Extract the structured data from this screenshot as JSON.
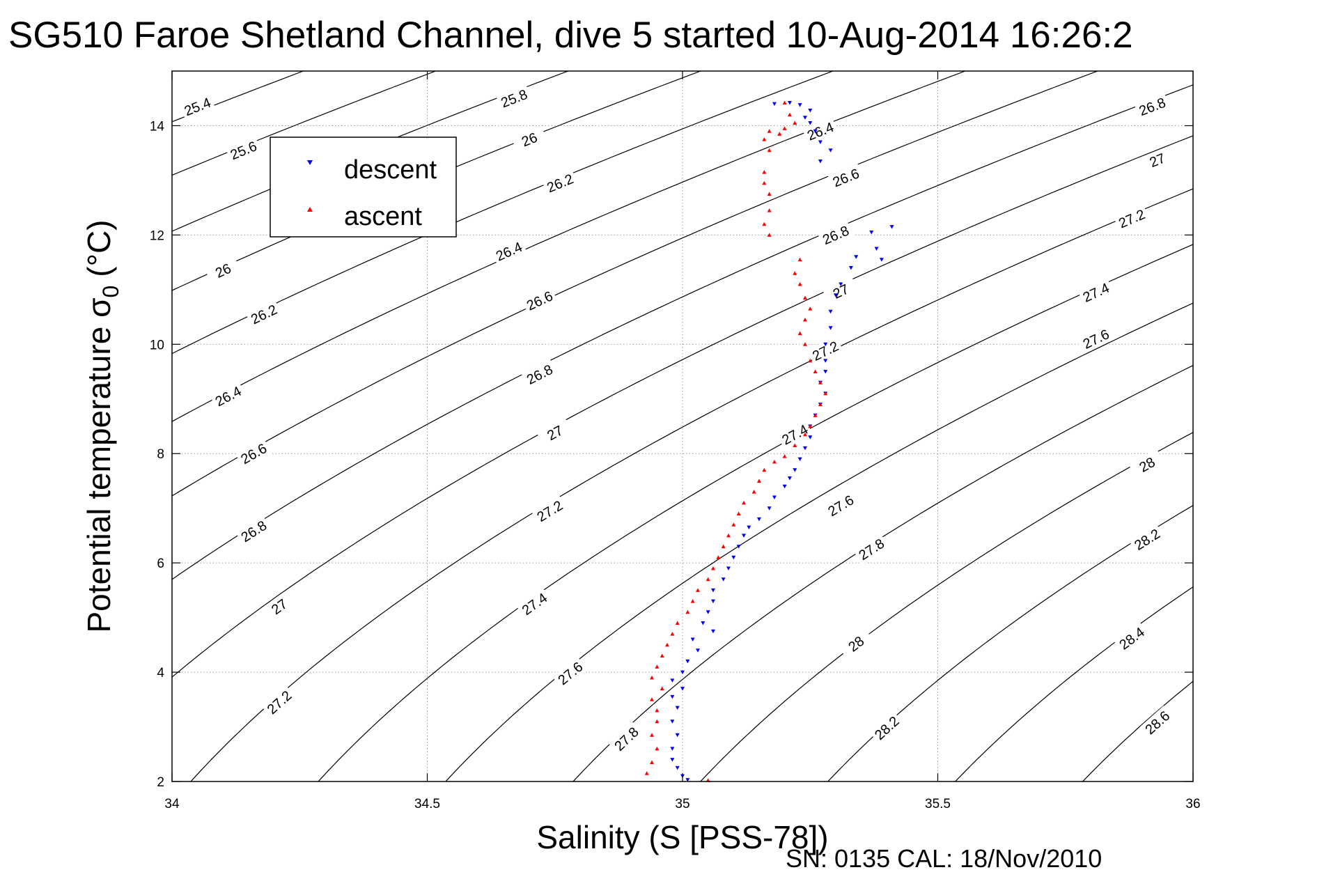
{
  "chart_data": {
    "type": "scatter",
    "title": "SG510 Faroe Shetland Channel, dive 5 started 10-Aug-2014 16:26:2",
    "xlabel": "Salinity (S [PSS-78])",
    "ylabel_main": "Potential temperature σ",
    "ylabel_sub": "0",
    "ylabel_unit": "(°C)",
    "footer": "SN: 0135  CAL: 18/Nov/2010",
    "xlim": [
      34,
      36
    ],
    "ylim": [
      2,
      15
    ],
    "x_ticks": [
      34,
      34.5,
      35,
      35.5,
      36
    ],
    "x_tick_labels": [
      "34",
      "34.5",
      "35",
      "35.5",
      "36"
    ],
    "y_ticks": [
      2,
      4,
      6,
      8,
      10,
      12,
      14
    ],
    "y_tick_labels": [
      "2",
      "4",
      "6",
      "8",
      "10",
      "12",
      "14"
    ],
    "grid": true,
    "legend_position": "top-left",
    "legend": [
      {
        "label": "descent",
        "color": "#0000ff",
        "marker": "triangle-down"
      },
      {
        "label": "ascent",
        "color": "#ff0000",
        "marker": "triangle-up"
      }
    ],
    "contour_levels": [
      "25.4",
      "25.6",
      "25.8",
      "26",
      "26.2",
      "26.4",
      "26.6",
      "26.8",
      "27",
      "27.2",
      "27.4",
      "27.6",
      "27.8",
      "28",
      "28.2",
      "28.4",
      "28.6"
    ],
    "contour_labels": [
      {
        "text": "25.4",
        "s": 34.05,
        "t": 14.35
      },
      {
        "text": "25.8",
        "s": 34.67,
        "t": 14.5
      },
      {
        "text": "25.6",
        "s": 34.14,
        "t": 13.55
      },
      {
        "text": "26",
        "s": 34.7,
        "t": 13.75
      },
      {
        "text": "26.2",
        "s": 34.76,
        "t": 12.95
      },
      {
        "text": "26.4",
        "s": 35.27,
        "t": 13.9
      },
      {
        "text": "26.6",
        "s": 35.32,
        "t": 13.05
      },
      {
        "text": "26.8",
        "s": 35.3,
        "t": 12.0
      },
      {
        "text": "27",
        "s": 35.31,
        "t": 10.97
      },
      {
        "text": "27.2",
        "s": 35.28,
        "t": 9.88
      },
      {
        "text": "27.4",
        "s": 35.22,
        "t": 8.35
      },
      {
        "text": "26",
        "s": 34.1,
        "t": 11.35
      },
      {
        "text": "26.4",
        "s": 34.66,
        "t": 11.7
      },
      {
        "text": "26.2",
        "s": 34.18,
        "t": 10.55
      },
      {
        "text": "26.6",
        "s": 34.72,
        "t": 10.8
      },
      {
        "text": "26.4",
        "s": 34.11,
        "t": 9.05
      },
      {
        "text": "26.8",
        "s": 34.72,
        "t": 9.45
      },
      {
        "text": "26.6",
        "s": 34.16,
        "t": 8.0
      },
      {
        "text": "27",
        "s": 34.75,
        "t": 8.38
      },
      {
        "text": "26.8",
        "s": 34.16,
        "t": 6.58
      },
      {
        "text": "27.2",
        "s": 34.74,
        "t": 6.95
      },
      {
        "text": "27",
        "s": 34.21,
        "t": 5.2
      },
      {
        "text": "27.4",
        "s": 34.71,
        "t": 5.25
      },
      {
        "text": "27.2",
        "s": 34.21,
        "t": 3.45
      },
      {
        "text": "27.6",
        "s": 34.78,
        "t": 3.98
      },
      {
        "text": "27.8",
        "s": 34.89,
        "t": 2.78
      },
      {
        "text": "27.6",
        "s": 35.31,
        "t": 7.05
      },
      {
        "text": "27.8",
        "s": 35.37,
        "t": 6.25
      },
      {
        "text": "28",
        "s": 35.34,
        "t": 4.52
      },
      {
        "text": "28.2",
        "s": 35.4,
        "t": 2.98
      },
      {
        "text": "26.8",
        "s": 35.92,
        "t": 14.35
      },
      {
        "text": "27",
        "s": 35.93,
        "t": 13.37
      },
      {
        "text": "27.2",
        "s": 35.88,
        "t": 12.3
      },
      {
        "text": "27.4",
        "s": 35.81,
        "t": 10.95
      },
      {
        "text": "27.6",
        "s": 35.81,
        "t": 10.1
      },
      {
        "text": "28",
        "s": 35.91,
        "t": 7.8
      },
      {
        "text": "28.2",
        "s": 35.91,
        "t": 6.43
      },
      {
        "text": "28.4",
        "s": 35.88,
        "t": 4.62
      },
      {
        "text": "28.6",
        "s": 35.93,
        "t": 3.08
      }
    ],
    "series": [
      {
        "name": "descent",
        "color": "#0000ff",
        "marker": "triangle-down",
        "points": [
          [
            35.18,
            14.4
          ],
          [
            35.21,
            14.42
          ],
          [
            35.23,
            14.38
          ],
          [
            35.25,
            14.28
          ],
          [
            35.24,
            14.15
          ],
          [
            35.25,
            14.05
          ],
          [
            35.26,
            13.9
          ],
          [
            35.27,
            13.7
          ],
          [
            35.29,
            13.55
          ],
          [
            35.27,
            13.35
          ],
          [
            35.37,
            12.05
          ],
          [
            35.41,
            12.15
          ],
          [
            35.38,
            11.75
          ],
          [
            35.39,
            11.55
          ],
          [
            35.34,
            11.6
          ],
          [
            35.33,
            11.4
          ],
          [
            35.31,
            11.1
          ],
          [
            35.3,
            10.9
          ],
          [
            35.29,
            10.6
          ],
          [
            35.29,
            10.3
          ],
          [
            35.28,
            10.0
          ],
          [
            35.28,
            9.7
          ],
          [
            35.28,
            9.5
          ],
          [
            35.27,
            9.3
          ],
          [
            35.28,
            9.1
          ],
          [
            35.27,
            8.9
          ],
          [
            35.26,
            8.7
          ],
          [
            35.25,
            8.5
          ],
          [
            35.25,
            8.3
          ],
          [
            35.24,
            8.1
          ],
          [
            35.23,
            7.9
          ],
          [
            35.22,
            7.7
          ],
          [
            35.21,
            7.55
          ],
          [
            35.2,
            7.4
          ],
          [
            35.18,
            7.2
          ],
          [
            35.17,
            7.0
          ],
          [
            35.15,
            6.8
          ],
          [
            35.13,
            6.65
          ],
          [
            35.12,
            6.5
          ],
          [
            35.11,
            6.3
          ],
          [
            35.1,
            6.1
          ],
          [
            35.09,
            5.9
          ],
          [
            35.08,
            5.7
          ],
          [
            35.06,
            5.5
          ],
          [
            35.06,
            5.3
          ],
          [
            35.05,
            5.1
          ],
          [
            35.04,
            4.9
          ],
          [
            35.06,
            4.75
          ],
          [
            35.02,
            4.6
          ],
          [
            35.03,
            4.4
          ],
          [
            35.01,
            4.2
          ],
          [
            35.0,
            4.0
          ],
          [
            34.98,
            3.85
          ],
          [
            35.0,
            3.7
          ],
          [
            34.98,
            3.55
          ],
          [
            34.99,
            3.35
          ],
          [
            34.98,
            3.1
          ],
          [
            34.99,
            2.85
          ],
          [
            34.98,
            2.6
          ],
          [
            34.98,
            2.4
          ],
          [
            34.99,
            2.25
          ],
          [
            35.0,
            2.1
          ],
          [
            35.01,
            2.03
          ]
        ]
      },
      {
        "name": "ascent",
        "color": "#ff0000",
        "marker": "triangle-up",
        "points": [
          [
            35.2,
            14.42
          ],
          [
            35.21,
            14.2
          ],
          [
            35.22,
            14.05
          ],
          [
            35.2,
            13.95
          ],
          [
            35.19,
            13.85
          ],
          [
            35.17,
            13.9
          ],
          [
            35.16,
            13.75
          ],
          [
            35.17,
            13.55
          ],
          [
            35.19,
            13.85
          ],
          [
            35.16,
            13.15
          ],
          [
            35.16,
            12.95
          ],
          [
            35.17,
            12.75
          ],
          [
            35.17,
            12.45
          ],
          [
            35.16,
            12.2
          ],
          [
            35.17,
            12.0
          ],
          [
            35.23,
            11.55
          ],
          [
            35.22,
            11.3
          ],
          [
            35.23,
            11.1
          ],
          [
            35.24,
            10.85
          ],
          [
            35.25,
            10.65
          ],
          [
            35.24,
            10.45
          ],
          [
            35.23,
            10.2
          ],
          [
            35.24,
            10.0
          ],
          [
            35.25,
            9.7
          ],
          [
            35.26,
            9.5
          ],
          [
            35.27,
            9.3
          ],
          [
            35.28,
            9.1
          ],
          [
            35.27,
            8.9
          ],
          [
            35.26,
            8.7
          ],
          [
            35.25,
            8.5
          ],
          [
            35.24,
            8.35
          ],
          [
            35.22,
            8.15
          ],
          [
            35.2,
            7.95
          ],
          [
            35.18,
            7.85
          ],
          [
            35.16,
            7.7
          ],
          [
            35.15,
            7.5
          ],
          [
            35.14,
            7.3
          ],
          [
            35.12,
            7.1
          ],
          [
            35.11,
            6.9
          ],
          [
            35.1,
            6.7
          ],
          [
            35.09,
            6.5
          ],
          [
            35.08,
            6.3
          ],
          [
            35.07,
            6.1
          ],
          [
            35.06,
            5.9
          ],
          [
            35.05,
            5.7
          ],
          [
            35.03,
            5.5
          ],
          [
            35.02,
            5.3
          ],
          [
            35.01,
            5.1
          ],
          [
            34.99,
            4.9
          ],
          [
            34.98,
            4.7
          ],
          [
            34.97,
            4.5
          ],
          [
            34.96,
            4.3
          ],
          [
            34.95,
            4.1
          ],
          [
            34.94,
            3.9
          ],
          [
            34.96,
            3.7
          ],
          [
            34.94,
            3.5
          ],
          [
            34.95,
            3.3
          ],
          [
            34.95,
            3.1
          ],
          [
            34.94,
            2.85
          ],
          [
            34.95,
            2.6
          ],
          [
            34.94,
            2.35
          ],
          [
            34.93,
            2.15
          ],
          [
            35.05,
            2.02
          ]
        ]
      }
    ]
  }
}
